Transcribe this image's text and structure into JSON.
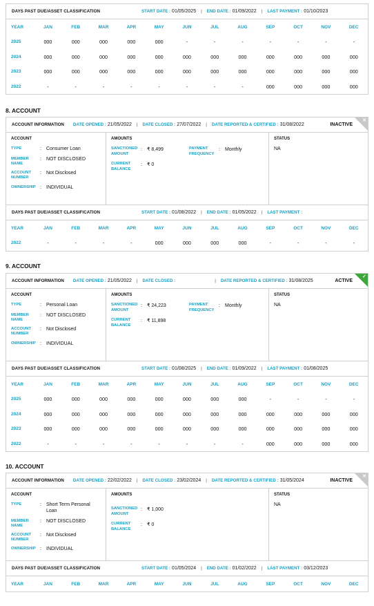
{
  "months_header": [
    "YEAR",
    "JAN",
    "FEB",
    "MAR",
    "APR",
    "MAY",
    "JUN",
    "JUL",
    "AUG",
    "SEP",
    "OCT",
    "NOV",
    "DEC"
  ],
  "labels": {
    "dpd_title": "DAYS PAST DUE/ASSET CLASSIFICATION",
    "start_date": "START DATE :",
    "end_date": "END DATE :",
    "last_payment": "LAST PAYMENT :",
    "account_information": "ACCOUNT INFORMATION",
    "date_opened": "DATE OPENED :",
    "date_closed": "DATE CLOSED :",
    "date_reported": "DATE REPORTED & CERTIFIED :",
    "account": "ACCOUNT",
    "amounts": "AMOUNTS",
    "status": "STATUS",
    "type": "TYPE",
    "member_name": "MEMBER NAME",
    "account_number": "ACCOUNT NUMBER",
    "ownership": "OWNERSHIP",
    "sanctioned_amount": "SANCTIONED AMOUNT",
    "current_balance": "CURRENT BALANCE",
    "payment_frequency": "PAYMENT FREQUENCY",
    "colon": ":"
  },
  "top_dpd": {
    "start_date": "01/05/2025",
    "end_date": "01/09/2022",
    "last_payment": "01/10/2023",
    "rows": [
      [
        "2025",
        "000",
        "000",
        "000",
        "000",
        "000",
        "-",
        "-",
        "-",
        "-",
        "-",
        "-",
        "-"
      ],
      [
        "2024",
        "000",
        "000",
        "000",
        "000",
        "000",
        "000",
        "000",
        "000",
        "000",
        "000",
        "000",
        "000"
      ],
      [
        "2023",
        "000",
        "000",
        "000",
        "000",
        "000",
        "000",
        "000",
        "000",
        "000",
        "000",
        "000",
        "000"
      ],
      [
        "2022",
        "-",
        "-",
        "-",
        "-",
        "-",
        "-",
        "-",
        "-",
        "000",
        "000",
        "000",
        "000"
      ]
    ]
  },
  "account8": {
    "title": "8. ACCOUNT",
    "date_opened": "21/05/2022",
    "date_closed": "27/07/2022",
    "date_reported": "31/08/2022",
    "state": "INACTIVE",
    "type": "Consumer Loan",
    "member_name": "NOT DISCLOSED",
    "account_number": "Not Disclosed",
    "ownership": "INDIVIDUAL",
    "sanctioned_amount": "₹ 8,499",
    "current_balance": "₹ 0",
    "payment_frequency": "Monthly",
    "status": "NA",
    "dpd": {
      "start_date": "01/08/2022",
      "end_date": "01/05/2022",
      "last_payment": "",
      "rows": [
        [
          "2022",
          "-",
          "-",
          "-",
          "-",
          "000",
          "000",
          "000",
          "000",
          "-",
          "-",
          "-",
          "-"
        ]
      ]
    }
  },
  "account9": {
    "title": "9. ACCOUNT",
    "date_opened": "21/05/2022",
    "date_closed": "",
    "date_reported": "31/08/2025",
    "state": "ACTIVE",
    "type": "Personal Loan",
    "member_name": "NOT DISCLOSED",
    "account_number": "Not Disclosed",
    "ownership": "INDIVIDUAL",
    "sanctioned_amount": "₹ 24,223",
    "current_balance": "₹ 11,898",
    "payment_frequency": "Monthly",
    "status": "NA",
    "dpd": {
      "start_date": "01/08/2025",
      "end_date": "01/09/2022",
      "last_payment": "01/08/2025",
      "rows": [
        [
          "2025",
          "000",
          "000",
          "000",
          "000",
          "000",
          "000",
          "000",
          "000",
          "-",
          "-",
          "-",
          "-"
        ],
        [
          "2024",
          "000",
          "000",
          "000",
          "000",
          "000",
          "000",
          "000",
          "000",
          "000",
          "000",
          "000",
          "000"
        ],
        [
          "2023",
          "000",
          "000",
          "000",
          "000",
          "000",
          "000",
          "000",
          "000",
          "000",
          "000",
          "000",
          "000"
        ],
        [
          "2022",
          "-",
          "-",
          "-",
          "-",
          "-",
          "-",
          "-",
          "-",
          "000",
          "000",
          "000",
          "000"
        ]
      ]
    }
  },
  "account10": {
    "title": "10. ACCOUNT",
    "date_opened": "22/02/2022",
    "date_closed": "23/02/2024",
    "date_reported": "31/05/2024",
    "state": "INACTIVE",
    "type": "Short Term Personal Loan",
    "member_name": "NOT DISCLOSED",
    "account_number": "Not Disclosed",
    "ownership": "INDIVIDUAL",
    "sanctioned_amount": "₹ 1,000",
    "current_balance": "₹ 0",
    "status": "NA",
    "dpd": {
      "start_date": "01/05/2024",
      "end_date": "01/02/2022",
      "last_payment": "03/12/2023",
      "rows": []
    }
  },
  "colors": {
    "accent": "#1a9fc0",
    "active": "#3da63d",
    "inactive": "#c9c9c9",
    "border": "#cfcfcf"
  },
  "icons": {
    "inactive_corner": "close-icon",
    "active_corner": "check-icon"
  }
}
